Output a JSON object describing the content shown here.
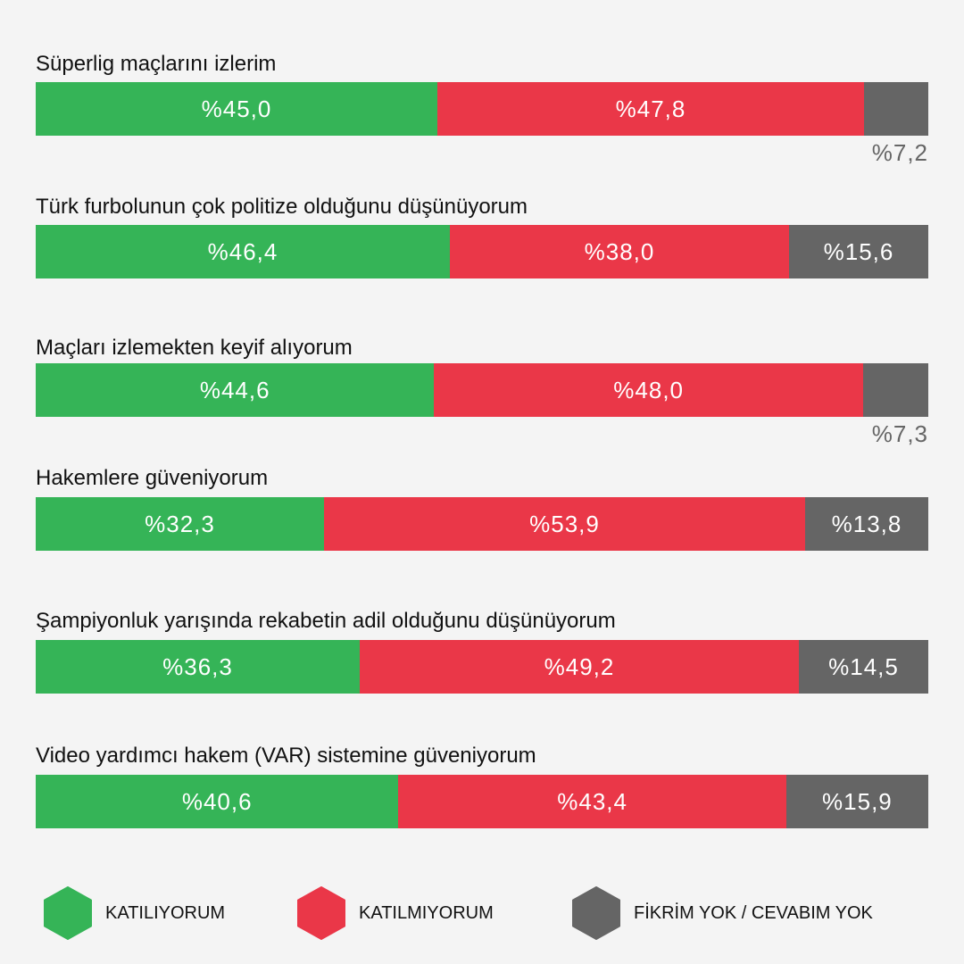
{
  "colors": {
    "agree": "#35b457",
    "disagree": "#ea3748",
    "no_opinion": "#656565"
  },
  "legend": [
    {
      "label": "KATILIYORUM",
      "color": "#35b457",
      "icon": "hexagon-icon"
    },
    {
      "label": "KATILMIYORUM",
      "color": "#ea3748",
      "icon": "hexagon-icon"
    },
    {
      "label": "FİKRİM YOK / CEVABIM YOK",
      "color": "#656565",
      "icon": "hexagon-icon"
    }
  ],
  "chart_data": {
    "type": "bar",
    "orientation": "horizontal",
    "stacked": true,
    "normalized": true,
    "categories": [
      "Süperlig maçlarını izlerim",
      "Türk furbolunun çok politize olduğunu düşünüyorum",
      "Maçları izlemekten keyif alıyorum",
      "Hakemlere güveniyorum",
      "Şampiyonluk yarışında rekabetin adil olduğunu düşünüyorum",
      "Video yardımcı hakem (VAR) sistemine güveniyorum"
    ],
    "series": [
      {
        "name": "KATILIYORUM",
        "values": [
          45.0,
          46.4,
          44.6,
          32.3,
          36.3,
          40.6
        ],
        "labels": [
          "%45,0",
          "%46,4",
          "%44,6",
          "%32,3",
          "%36,3",
          "%40,6"
        ]
      },
      {
        "name": "KATILMIYORUM",
        "values": [
          47.8,
          38.0,
          48.0,
          53.9,
          49.2,
          43.4
        ],
        "labels": [
          "%47,8",
          "%38,0",
          "%48,0",
          "%53,9",
          "%49,2",
          "%43,4"
        ]
      },
      {
        "name": "FİKRİM YOK / CEVABIM YOK",
        "values": [
          7.2,
          15.6,
          7.3,
          13.8,
          14.5,
          15.9
        ],
        "labels": [
          "%7,2",
          "%15,6",
          "%7,3",
          "%13,8",
          "%14,5",
          "%15,9"
        ]
      }
    ],
    "legend_position": "bottom",
    "grid": false
  }
}
